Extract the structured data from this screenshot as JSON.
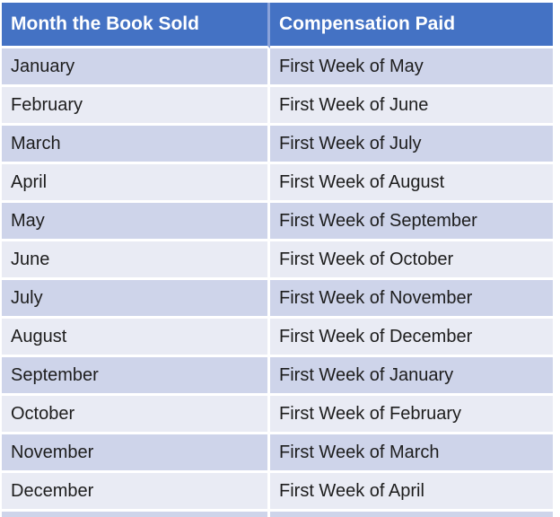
{
  "table": {
    "columns": [
      "Month the Book Sold",
      "Compensation Paid"
    ],
    "rows": [
      {
        "month": "January",
        "compensation": "First Week of May"
      },
      {
        "month": "February",
        "compensation": "First Week of June"
      },
      {
        "month": "March",
        "compensation": "First Week of July"
      },
      {
        "month": "April",
        "compensation": "First Week of August"
      },
      {
        "month": "May",
        "compensation": "First Week of September"
      },
      {
        "month": "June",
        "compensation": "First Week of October"
      },
      {
        "month": "July",
        "compensation": "First Week of November"
      },
      {
        "month": "August",
        "compensation": "First Week of December"
      },
      {
        "month": "September",
        "compensation": "First Week of January"
      },
      {
        "month": "October",
        "compensation": "First Week of February"
      },
      {
        "month": "November",
        "compensation": "First Week of March"
      },
      {
        "month": "December",
        "compensation": "First Week of April"
      }
    ]
  },
  "colors": {
    "header_bg": "#4472C4",
    "header_text": "#FFFFFF",
    "header_divider": "#8BA3DA",
    "row_dark": "#CED4EA",
    "row_light": "#E9EBF4",
    "body_text": "#1D1D1D"
  }
}
